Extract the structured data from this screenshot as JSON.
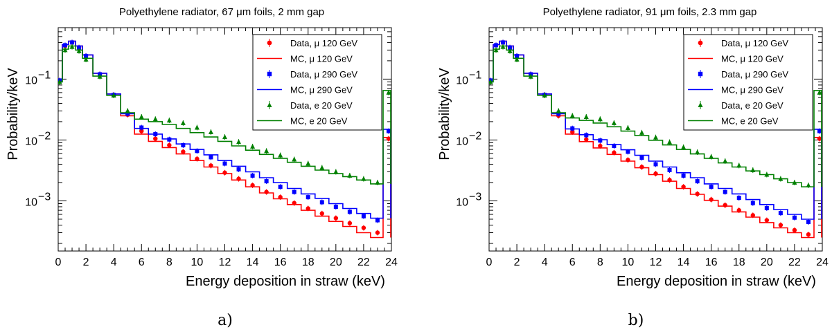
{
  "chart_data": [
    {
      "type": "line",
      "title": "Polyethylene radiator, 67 μm foils, 2 mm gap",
      "xlabel": "Energy deposition in straw (keV)",
      "ylabel": "Probability/keV",
      "xlim": [
        0,
        24
      ],
      "ylim": [
        0.00015,
        0.7
      ],
      "yscale": "log",
      "panel_label": "a)",
      "x_ticks": [
        "0",
        "2",
        "4",
        "6",
        "8",
        "10",
        "12",
        "14",
        "16",
        "18",
        "20",
        "22",
        "24"
      ],
      "y_ticks": [
        {
          "value": 0.1,
          "base": "10",
          "exp": "−1"
        },
        {
          "value": 0.01,
          "base": "10",
          "exp": "−2"
        },
        {
          "value": 0.001,
          "base": "10",
          "exp": "−3"
        }
      ],
      "legend_position": "top-right",
      "series": [
        {
          "name": "Data, μ 120 GeV",
          "kind": "data",
          "marker": "circle",
          "color": "#ff0000",
          "x": [
            0.1,
            0.5,
            1,
            1.5,
            2,
            3,
            4,
            5,
            6,
            7,
            8,
            9,
            10,
            11,
            12,
            13,
            14,
            15,
            16,
            17,
            18,
            19,
            20,
            21,
            22,
            23,
            23.8
          ],
          "y": [
            0.095,
            0.35,
            0.4,
            0.33,
            0.24,
            0.12,
            0.055,
            0.026,
            0.014,
            0.0105,
            0.0082,
            0.0064,
            0.0049,
            0.0038,
            0.0029,
            0.0023,
            0.0018,
            0.0014,
            0.00115,
            0.00092,
            0.00075,
            0.00062,
            0.00052,
            0.00043,
            0.00036,
            0.0003,
            0.0105
          ]
        },
        {
          "name": "MC, μ 120 GeV",
          "kind": "mc",
          "marker": "step",
          "color": "#ff0000",
          "x": [
            0.1,
            0.5,
            1,
            1.5,
            2,
            3,
            4,
            5,
            6,
            7,
            8,
            9,
            10,
            11,
            12,
            13,
            14,
            15,
            16,
            17,
            18,
            19,
            20,
            21,
            22,
            23,
            23.8
          ],
          "y": [
            0.1,
            0.37,
            0.42,
            0.35,
            0.25,
            0.125,
            0.057,
            0.025,
            0.0125,
            0.0095,
            0.0075,
            0.0059,
            0.0046,
            0.0036,
            0.0028,
            0.0022,
            0.0017,
            0.00135,
            0.00108,
            0.00087,
            0.0007,
            0.00056,
            0.00046,
            0.00038,
            0.0003,
            0.00025,
            0.011
          ]
        },
        {
          "name": "Data, μ 290 GeV",
          "kind": "data",
          "marker": "square",
          "color": "#0000ff",
          "x": [
            0.1,
            0.5,
            1,
            1.5,
            2,
            3,
            4,
            5,
            6,
            7,
            8,
            9,
            10,
            11,
            12,
            13,
            14,
            15,
            16,
            17,
            18,
            19,
            20,
            21,
            22,
            23,
            23.8
          ],
          "y": [
            0.095,
            0.36,
            0.4,
            0.33,
            0.24,
            0.12,
            0.055,
            0.027,
            0.016,
            0.0125,
            0.0102,
            0.0082,
            0.0066,
            0.0052,
            0.0041,
            0.0033,
            0.0026,
            0.0021,
            0.0017,
            0.0014,
            0.00115,
            0.00095,
            0.0008,
            0.00066,
            0.00056,
            0.00048,
            0.014
          ]
        },
        {
          "name": "MC, μ 290 GeV",
          "kind": "mc",
          "marker": "step",
          "color": "#0000ff",
          "x": [
            0.1,
            0.5,
            1,
            1.5,
            2,
            3,
            4,
            5,
            6,
            7,
            8,
            9,
            10,
            11,
            12,
            13,
            14,
            15,
            16,
            17,
            18,
            19,
            20,
            21,
            22,
            23,
            23.8
          ],
          "y": [
            0.1,
            0.37,
            0.42,
            0.35,
            0.25,
            0.125,
            0.057,
            0.027,
            0.0155,
            0.0125,
            0.0104,
            0.0086,
            0.007,
            0.0057,
            0.0046,
            0.0037,
            0.003,
            0.0024,
            0.002,
            0.0016,
            0.0013,
            0.0011,
            0.0009,
            0.00075,
            0.00062,
            0.00052,
            0.015
          ]
        },
        {
          "name": "Data, e 20 GeV",
          "kind": "data",
          "marker": "triangle",
          "color": "#008000",
          "x": [
            0.1,
            0.5,
            1,
            1.5,
            2,
            3,
            4,
            5,
            6,
            7,
            8,
            9,
            10,
            11,
            12,
            13,
            14,
            15,
            16,
            17,
            18,
            19,
            20,
            21,
            22,
            23,
            23.8
          ],
          "y": [
            0.09,
            0.3,
            0.34,
            0.29,
            0.21,
            0.11,
            0.054,
            0.03,
            0.024,
            0.022,
            0.021,
            0.019,
            0.016,
            0.0135,
            0.0112,
            0.0093,
            0.0078,
            0.0066,
            0.0056,
            0.0048,
            0.0041,
            0.0035,
            0.003,
            0.0026,
            0.0023,
            0.002,
            0.06
          ]
        },
        {
          "name": "MC, e 20 GeV",
          "kind": "mc",
          "marker": "step",
          "color": "#008000",
          "x": [
            0.1,
            0.5,
            1,
            1.5,
            2,
            3,
            4,
            5,
            6,
            7,
            8,
            9,
            10,
            11,
            12,
            13,
            14,
            15,
            16,
            17,
            18,
            19,
            20,
            21,
            22,
            23,
            23.8
          ],
          "y": [
            0.09,
            0.31,
            0.35,
            0.3,
            0.22,
            0.112,
            0.054,
            0.028,
            0.022,
            0.02,
            0.018,
            0.0155,
            0.0132,
            0.0112,
            0.0095,
            0.008,
            0.0068,
            0.0058,
            0.005,
            0.0043,
            0.0037,
            0.0032,
            0.0028,
            0.0025,
            0.0022,
            0.0019,
            0.065
          ]
        }
      ]
    },
    {
      "type": "line",
      "title": "Polyethylene radiator, 91 μm foils, 2.3 mm gap",
      "xlabel": "Energy deposition in straw (keV)",
      "ylabel": "Probability/keV",
      "xlim": [
        0,
        24
      ],
      "ylim": [
        0.00015,
        0.7
      ],
      "yscale": "log",
      "panel_label": "b)",
      "x_ticks": [
        "0",
        "2",
        "4",
        "6",
        "8",
        "10",
        "12",
        "14",
        "16",
        "18",
        "20",
        "22",
        "24"
      ],
      "y_ticks": [
        {
          "value": 0.1,
          "base": "10",
          "exp": "−1"
        },
        {
          "value": 0.01,
          "base": "10",
          "exp": "−2"
        },
        {
          "value": 0.001,
          "base": "10",
          "exp": "−3"
        }
      ],
      "legend_position": "top-right",
      "series": [
        {
          "name": "Data, μ 120 GeV",
          "kind": "data",
          "marker": "circle",
          "color": "#ff0000",
          "x": [
            0.1,
            0.5,
            1,
            1.5,
            2,
            3,
            4,
            5,
            6,
            7,
            8,
            9,
            10,
            11,
            12,
            13,
            14,
            15,
            16,
            17,
            18,
            19,
            20,
            21,
            22,
            23,
            23.8
          ],
          "y": [
            0.095,
            0.36,
            0.4,
            0.33,
            0.24,
            0.12,
            0.055,
            0.025,
            0.0135,
            0.0102,
            0.008,
            0.0062,
            0.0047,
            0.0036,
            0.0028,
            0.0022,
            0.0017,
            0.0013,
            0.00105,
            0.00085,
            0.0007,
            0.00058,
            0.00048,
            0.0004,
            0.00033,
            0.00028,
            0.0105
          ]
        },
        {
          "name": "MC, μ 120 GeV",
          "kind": "mc",
          "marker": "step",
          "color": "#ff0000",
          "x": [
            0.1,
            0.5,
            1,
            1.5,
            2,
            3,
            4,
            5,
            6,
            7,
            8,
            9,
            10,
            11,
            12,
            13,
            14,
            15,
            16,
            17,
            18,
            19,
            20,
            21,
            22,
            23,
            23.8
          ],
          "y": [
            0.1,
            0.37,
            0.42,
            0.35,
            0.25,
            0.125,
            0.057,
            0.025,
            0.0125,
            0.0094,
            0.0074,
            0.0058,
            0.0045,
            0.0035,
            0.0027,
            0.0021,
            0.0016,
            0.00128,
            0.00102,
            0.00082,
            0.00066,
            0.00054,
            0.00044,
            0.00036,
            0.0003,
            0.00025,
            0.011
          ]
        },
        {
          "name": "Data, μ 290 GeV",
          "kind": "data",
          "marker": "square",
          "color": "#0000ff",
          "x": [
            0.1,
            0.5,
            1,
            1.5,
            2,
            3,
            4,
            5,
            6,
            7,
            8,
            9,
            10,
            11,
            12,
            13,
            14,
            15,
            16,
            17,
            18,
            19,
            20,
            21,
            22,
            23,
            23.8
          ],
          "y": [
            0.095,
            0.36,
            0.4,
            0.33,
            0.24,
            0.12,
            0.055,
            0.027,
            0.0155,
            0.012,
            0.0098,
            0.008,
            0.0064,
            0.0051,
            0.004,
            0.0032,
            0.0026,
            0.0021,
            0.0017,
            0.0014,
            0.00112,
            0.00092,
            0.00076,
            0.00063,
            0.00053,
            0.00045,
            0.014
          ]
        },
        {
          "name": "MC, μ 290 GeV",
          "kind": "mc",
          "marker": "step",
          "color": "#0000ff",
          "x": [
            0.1,
            0.5,
            1,
            1.5,
            2,
            3,
            4,
            5,
            6,
            7,
            8,
            9,
            10,
            11,
            12,
            13,
            14,
            15,
            16,
            17,
            18,
            19,
            20,
            21,
            22,
            23,
            23.8
          ],
          "y": [
            0.1,
            0.37,
            0.42,
            0.35,
            0.25,
            0.125,
            0.057,
            0.027,
            0.0152,
            0.0122,
            0.0101,
            0.0084,
            0.0069,
            0.0056,
            0.0045,
            0.0036,
            0.0029,
            0.0024,
            0.0019,
            0.0016,
            0.0013,
            0.00105,
            0.00087,
            0.00072,
            0.0006,
            0.0005,
            0.015
          ]
        },
        {
          "name": "Data, e 20 GeV",
          "kind": "data",
          "marker": "triangle",
          "color": "#008000",
          "x": [
            0.1,
            0.5,
            1,
            1.5,
            2,
            3,
            4,
            5,
            6,
            7,
            8,
            9,
            10,
            11,
            12,
            13,
            14,
            15,
            16,
            17,
            18,
            19,
            20,
            21,
            22,
            23,
            23.8
          ],
          "y": [
            0.09,
            0.3,
            0.34,
            0.29,
            0.21,
            0.11,
            0.054,
            0.03,
            0.025,
            0.024,
            0.022,
            0.019,
            0.0158,
            0.0132,
            0.011,
            0.0092,
            0.0076,
            0.0063,
            0.0053,
            0.0045,
            0.0038,
            0.0032,
            0.0027,
            0.0023,
            0.002,
            0.0018,
            0.06
          ]
        },
        {
          "name": "MC, e 20 GeV",
          "kind": "mc",
          "marker": "step",
          "color": "#008000",
          "x": [
            0.1,
            0.5,
            1,
            1.5,
            2,
            3,
            4,
            5,
            6,
            7,
            8,
            9,
            10,
            11,
            12,
            13,
            14,
            15,
            16,
            17,
            18,
            19,
            20,
            21,
            22,
            23,
            23.8
          ],
          "y": [
            0.09,
            0.31,
            0.35,
            0.3,
            0.22,
            0.112,
            0.054,
            0.028,
            0.023,
            0.021,
            0.019,
            0.0165,
            0.014,
            0.0118,
            0.0099,
            0.0083,
            0.007,
            0.0059,
            0.005,
            0.0042,
            0.0036,
            0.0031,
            0.0027,
            0.0023,
            0.002,
            0.0017,
            0.065
          ]
        }
      ]
    }
  ]
}
